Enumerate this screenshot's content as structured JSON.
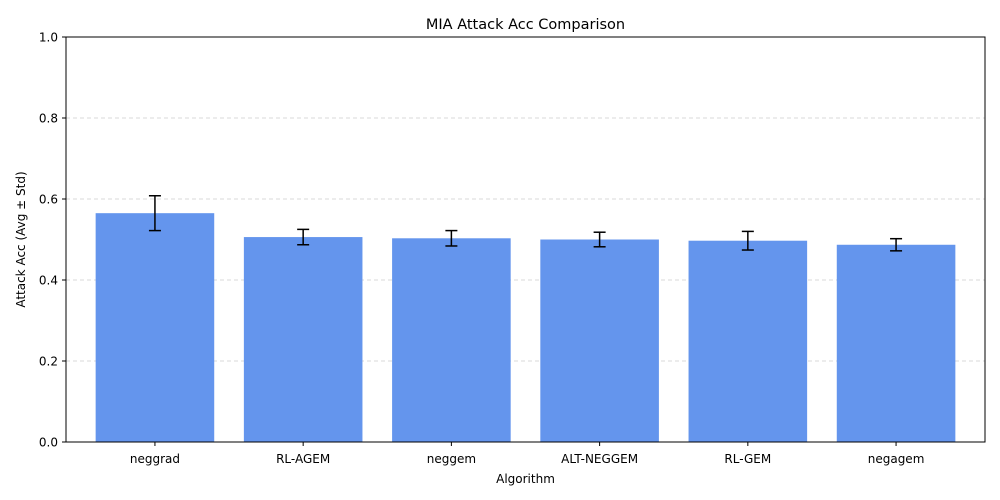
{
  "chart_data": {
    "type": "bar",
    "title": "MIA Attack Acc Comparison",
    "xlabel": "Algorithm",
    "ylabel": "Attack Acc (Avg ± Std)",
    "categories": [
      "neggrad",
      "RL-AGEM",
      "neggem",
      "ALT-NEGGEM",
      "RL-GEM",
      "negagem"
    ],
    "values": [
      0.565,
      0.506,
      0.503,
      0.5,
      0.497,
      0.487
    ],
    "errors": [
      0.043,
      0.019,
      0.019,
      0.018,
      0.023,
      0.015
    ],
    "ylim": [
      0,
      1.0
    ],
    "yticks": [
      "0.0",
      "0.2",
      "0.4",
      "0.6",
      "0.8",
      "1.0"
    ],
    "grid": "y-dashed",
    "bar_color": "#6495ed",
    "grid_color": "#cccccc"
  }
}
